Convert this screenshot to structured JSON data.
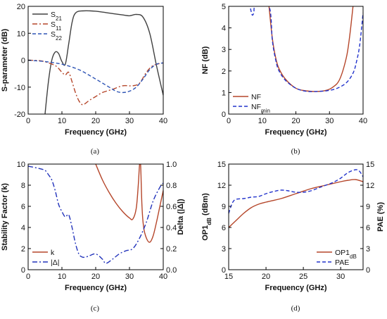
{
  "captions": [
    "(a)",
    "(b)",
    "(c)",
    "(d)"
  ],
  "chart_data": [
    {
      "type": "line",
      "xlabel": "Frequency (GHz)",
      "ylabel": "S-parameter (dB)",
      "xlim": [
        0,
        40
      ],
      "ylim": [
        -20,
        20
      ],
      "xticks": [
        0,
        10,
        20,
        30,
        40
      ],
      "yticks": [
        -20,
        -10,
        0,
        10,
        20
      ],
      "legend": "top-left",
      "series": [
        {
          "name": "S21",
          "label_main": "S",
          "label_sub": "21",
          "color": "#404040",
          "style": "solid",
          "x": [
            5,
            6,
            7,
            8,
            9,
            10,
            11,
            12,
            13,
            14,
            16,
            20,
            24,
            28,
            30,
            32,
            34,
            36,
            38,
            40
          ],
          "y": [
            -20,
            -8,
            0,
            3,
            2.5,
            -0.5,
            -1.5,
            6,
            14,
            17.5,
            18.3,
            18.2,
            17.5,
            16.8,
            16.5,
            17,
            16,
            10,
            -2,
            -13
          ]
        },
        {
          "name": "S11",
          "label_main": "S",
          "label_sub": "11",
          "color": "#b5462a",
          "style": "dashdot",
          "x": [
            0,
            4,
            8,
            10,
            11,
            12,
            13,
            14,
            15,
            16,
            17,
            18,
            20,
            22,
            25,
            28,
            31,
            33,
            35,
            37,
            40
          ],
          "y": [
            0,
            -0.3,
            -2,
            -4.5,
            -5.5,
            -4.5,
            -8,
            -12,
            -15,
            -16.5,
            -16,
            -15,
            -13.5,
            -12,
            -10.8,
            -9.5,
            -9.5,
            -8.5,
            -4.5,
            -2,
            -1
          ]
        },
        {
          "name": "S22",
          "label_main": "S",
          "label_sub": "22",
          "color": "#2f55b5",
          "style": "dashed",
          "x": [
            0,
            5,
            10,
            15,
            20,
            24,
            26,
            28,
            30,
            32,
            34,
            36,
            38,
            40
          ],
          "y": [
            0,
            -0.5,
            -1.5,
            -3.5,
            -7,
            -10,
            -11.5,
            -12,
            -11.5,
            -10,
            -7,
            -3.5,
            -1.5,
            -1
          ]
        }
      ]
    },
    {
      "type": "line",
      "xlabel": "Frequency (GHz)",
      "ylabel": "NF (dB)",
      "xlim": [
        0,
        40
      ],
      "ylim": [
        0,
        5
      ],
      "xticks": [
        0,
        10,
        20,
        30,
        40
      ],
      "yticks": [
        0,
        1,
        2,
        3,
        4,
        5
      ],
      "legend": "bottom-left",
      "series": [
        {
          "name": "NF",
          "label_main": "NF",
          "label_sub": "",
          "color": "#b5462a",
          "style": "solid",
          "x": [
            12,
            13,
            14,
            15,
            17,
            20,
            23,
            26,
            29,
            31,
            33,
            35,
            36,
            37
          ],
          "y": [
            5,
            3.5,
            2.6,
            2.1,
            1.6,
            1.2,
            1.08,
            1.05,
            1.1,
            1.25,
            1.6,
            2.6,
            3.6,
            5
          ]
        },
        {
          "name": "NFmin",
          "label_main": "NF",
          "label_sub": "min",
          "color": "#2233cc",
          "style": "dashed",
          "x": [
            6.5,
            7.0,
            7.5,
            8.0,
            12,
            13,
            14,
            15,
            17,
            20,
            23,
            26,
            29,
            32,
            35,
            37,
            38,
            39,
            40
          ],
          "y": [
            4.9,
            4.6,
            4.7,
            5.0,
            5,
            3.4,
            2.5,
            2.0,
            1.55,
            1.2,
            1.06,
            1.05,
            1.08,
            1.18,
            1.45,
            1.9,
            2.4,
            3.2,
            4.7
          ]
        }
      ]
    },
    {
      "type": "line",
      "xlabel": "Frequency (GHz)",
      "ylabel": "Stability Factor (k)",
      "y2label": "Delta (|Δ|)",
      "xlim": [
        0,
        40
      ],
      "ylim": [
        0,
        10
      ],
      "y2lim": [
        0,
        1
      ],
      "xticks": [
        0,
        10,
        20,
        30,
        40
      ],
      "yticks": [
        0,
        2,
        4,
        6,
        8,
        10
      ],
      "y2ticks": [
        "0.0",
        "0.2",
        "0.4",
        "0.6",
        "0.8",
        "1.0"
      ],
      "legend": "bottom-left",
      "series": [
        {
          "name": "k",
          "label_main": "k",
          "label_sub": "",
          "color": "#b5462a",
          "style": "solid",
          "axis": "left",
          "x": [
            20,
            22,
            24,
            26,
            28,
            30,
            31,
            32,
            32.6,
            33,
            33.3,
            33.7,
            34.2,
            35,
            36,
            37,
            38,
            39,
            40
          ],
          "y": [
            10,
            8.5,
            7.3,
            6.3,
            5.5,
            4.9,
            4.8,
            5.8,
            8,
            10,
            10,
            6,
            4,
            3,
            2.6,
            3.2,
            4.5,
            6,
            7.5
          ]
        },
        {
          "name": "|Δ|",
          "label_main": "|Δ|",
          "label_sub": "",
          "color": "#2233bb",
          "style": "dashdot",
          "axis": "right",
          "x": [
            0,
            3,
            5,
            6,
            7,
            8,
            9,
            10,
            11,
            12,
            13,
            14,
            15,
            16,
            17,
            18,
            20,
            22,
            23,
            25,
            27,
            29,
            31,
            33,
            35,
            37,
            39,
            40
          ],
          "y": [
            0.98,
            0.96,
            0.94,
            0.9,
            0.85,
            0.75,
            0.62,
            0.55,
            0.5,
            0.52,
            0.4,
            0.25,
            0.15,
            0.12,
            0.12,
            0.13,
            0.15,
            0.1,
            0.06,
            0.1,
            0.15,
            0.18,
            0.2,
            0.3,
            0.45,
            0.65,
            0.78,
            0.82
          ]
        }
      ]
    },
    {
      "type": "line",
      "xlabel": "Frequency (GHz)",
      "ylabel": "OP1dB (dBm)",
      "ylabel_main": "OP1",
      "ylabel_sub": "dB",
      "ylabel_tail": " (dBm)",
      "y2label": "PAE (%)",
      "xlim": [
        15,
        33
      ],
      "ylim": [
        0,
        15
      ],
      "y2lim": [
        0,
        15
      ],
      "xticks": [
        15,
        20,
        25,
        30
      ],
      "yticks": [
        0,
        3,
        6,
        9,
        12,
        15
      ],
      "y2ticks": [
        0,
        3,
        6,
        9,
        12,
        15
      ],
      "legend": "bottom-right",
      "series": [
        {
          "name": "OP1dB",
          "label_main": "OP1",
          "label_sub": "dB",
          "color": "#b5462a",
          "style": "solid",
          "axis": "left",
          "x": [
            15,
            16,
            17,
            18,
            19,
            20,
            22,
            24,
            26,
            28,
            30,
            31,
            32,
            33
          ],
          "y": [
            6,
            7,
            8,
            8.8,
            9.3,
            9.6,
            10.1,
            10.8,
            11.5,
            12,
            12.5,
            12.7,
            12.8,
            12.5
          ]
        },
        {
          "name": "PAE",
          "label_main": "PAE",
          "label_sub": "",
          "color": "#2233cc",
          "style": "dashed",
          "axis": "right",
          "x": [
            15,
            15.5,
            16,
            17,
            18,
            19,
            20,
            21,
            22,
            23,
            24,
            25,
            26,
            27,
            28,
            29,
            30,
            31,
            32,
            32.5,
            33
          ],
          "y": [
            8,
            9.5,
            10,
            10.1,
            10.3,
            10.4,
            10.8,
            11.1,
            11.3,
            11.2,
            11,
            11,
            11.2,
            11.6,
            12,
            12.4,
            13,
            13.8,
            14.2,
            14,
            13.2
          ]
        }
      ]
    }
  ]
}
